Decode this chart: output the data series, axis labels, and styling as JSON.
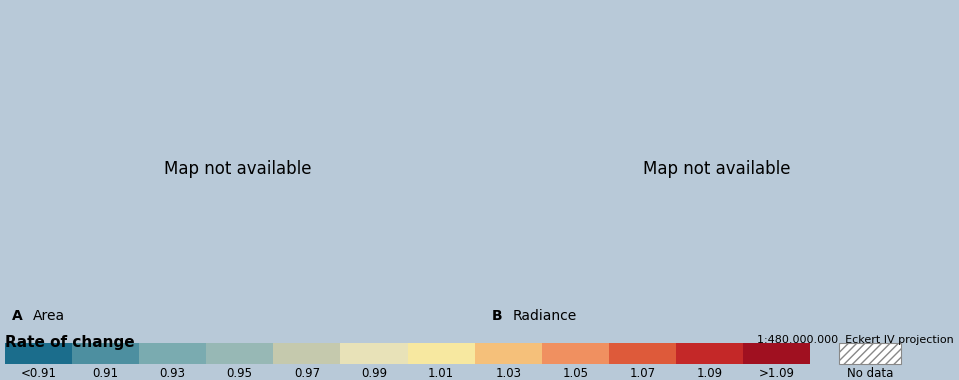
{
  "panel_a_label": "A",
  "panel_a_title": "Area",
  "panel_b_label": "B",
  "panel_b_title": "Radiance",
  "legend_title": "Rate of change",
  "scale_text": "1:480.000.000  Eckert IV projection",
  "no_data_text": "No data",
  "background_color": "#b8c9d8",
  "ocean_color": "#b8c9d8",
  "colorbar_colors": [
    "#1b6d8c",
    "#4d8fa0",
    "#7aabb0",
    "#97b8b5",
    "#c5c9ad",
    "#e8e2b8",
    "#f7e8a0",
    "#f5c07a",
    "#f09060",
    "#de5a3a",
    "#c42828",
    "#a01020"
  ],
  "colorbar_labels": [
    "<0.91",
    "0.91",
    "0.93",
    "0.95",
    "0.97",
    "0.99",
    "1.01",
    "1.03",
    "1.05",
    "1.07",
    "1.09",
    ">1.09"
  ],
  "label_fontsize": 10,
  "tick_fontsize": 8.5,
  "legend_title_fontsize": 11,
  "area_default": "#f5c07a",
  "radiance_default": "#f5c07a",
  "area_countries": {
    "Russia": "#a01020",
    "Canada": "#f5c07a",
    "United States of America": "#f7e8a0",
    "Greenland": "#e8e2b8",
    "Brazil": "#f5c07a",
    "Australia": "#1b6d8c",
    "China": "#f09060",
    "India": "#de5a3a",
    "Nigeria": "#c42828",
    "Ethiopia": "#c42828",
    "Egypt": "#a01020",
    "Algeria": "#c42828",
    "Libya": "#a01020",
    "Sudan": "#c42828",
    "South Africa": "#f09060",
    "Angola": "#c42828",
    "Dem. Rep. Congo": "#f09060",
    "Tanzania": "#f09060",
    "Kenya": "#f09060",
    "Mozambique": "#f5c07a",
    "Germany": "#c42828",
    "France": "#c42828",
    "Spain": "#de5a3a",
    "United Kingdom": "#c42828",
    "Italy": "#c42828",
    "Poland": "#a01020",
    "Saudi Arabia": "#a01020",
    "Iran": "#f09060",
    "Iraq": "#a01020",
    "Turkey": "#c42828",
    "Japan": "#f5c07a",
    "South Korea": "#f09060",
    "Indonesia": "#f5c07a",
    "Kazakhstan": "#e8e2b8",
    "Pakistan": "#de5a3a",
    "Colombia": "#de5a3a",
    "Venezuela": "#de5a3a",
    "Peru": "#f5c07a",
    "Argentina": "#f5c07a",
    "Chile": "#f5c07a",
    "Mexico": "#f09060",
    "Ukraine": "#a01020",
    "Belarus": "#a01020",
    "Romania": "#a01020",
    "Hungary": "#a01020",
    "Czech Rep.": "#a01020",
    "Slovakia": "#a01020",
    "Bulgaria": "#a01020",
    "Serbia": "#a01020",
    "Croatia": "#c42828",
    "Bosnia and Herz.": "#c42828",
    "Sweden": "#a01020",
    "Norway": "#a01020",
    "Finland": "#a01020",
    "Denmark": "#a01020",
    "Austria": "#a01020",
    "Switzerland": "#c42828",
    "Netherlands": "#a01020",
    "Belgium": "#a01020",
    "Portugal": "#c42828",
    "Greece": "#c42828",
    "Morocco": "#c42828",
    "Tunisia": "#a01020",
    "Somalia": "#c42828",
    "Zimbabwe": "#f09060",
    "Zambia": "#f09060",
    "Mali": "#a01020",
    "Niger": "#a01020",
    "Chad": "#c42828",
    "Cameroon": "#c42828",
    "Senegal": "#c42828",
    "Guinea": "#c42828",
    "Ghana": "#c42828",
    "Ivory Coast": "#c42828",
    "Burkina Faso": "#a01020",
    "Madagascar": "#7aabb0",
    "Mongolia": "#e8e2b8",
    "Myanmar": "#f09060",
    "Thailand": "#f09060",
    "Vietnam": "#c42828",
    "Malaysia": "#f5c07a",
    "Philippines": "#f5c07a",
    "Afghanistan": "#97b8b5",
    "Uzbekistan": "#f09060",
    "Syria": "#a01020",
    "Yemen": "#a01020",
    "Oman": "#c42828",
    "Jordan": "#a01020",
    "Israel": "#a01020",
    "Lebanon": "#a01020",
    "Kuwait": "#a01020",
    "Qatar": "#a01020",
    "United Arab Emirates": "#c42828",
    "Bolivia": "#f5c07a",
    "Paraguay": "#f5c07a",
    "Uruguay": "#f5c07a",
    "Ecuador": "#de5a3a",
    "Cuba": "#c42828",
    "Guatemala": "#c42828",
    "Honduras": "#c42828",
    "Nicaragua": "#c42828",
    "Costa Rica": "#c42828",
    "Panama": "#c42828",
    "New Zealand": "#f5c07a",
    "Papua New Guinea": "#f5c07a",
    "Laos": "#f09060",
    "Cambodia": "#f09060",
    "Bangladesh": "#de5a3a",
    "Sri Lanka": "#de5a3a",
    "Nepal": "#de5a3a",
    "North Korea": "#c42828",
    "Taiwan": "#f09060",
    "Eritrea": "#c42828",
    "South Sudan": "#c42828",
    "Rwanda": "#c42828",
    "Burundi": "#c42828",
    "Uganda": "#c42828",
    "Congo": "#c42828",
    "Gabon": "#f09060",
    "Central African Rep.": "#c42828",
    "Benin": "#c42828",
    "Togo": "#c42828",
    "Liberia": "#c42828",
    "Sierra Leone": "#c42828",
    "Gambia": "#c42828",
    "Guinea-Bissau": "#c42828",
    "Mauritania": "#c42828",
    "Western Sahara": "#c42828",
    "Namibia": "#f09060",
    "Botswana": "#f09060",
    "Lesotho": "#f09060",
    "Swaziland": "#f09060",
    "Malawi": "#f09060",
    "Djibouti": "#c42828",
    "Albania": "#c42828",
    "Macedonia": "#c42828",
    "Kosovo": "#c42828",
    "Montenegro": "#c42828",
    "Moldova": "#a01020",
    "Lithuania": "#a01020",
    "Latvia": "#a01020",
    "Estonia": "#a01020",
    "Ireland": "#c42828",
    "Iceland": "#c42828",
    "Luxembourg": "#c42828",
    "Slovenia": "#c42828",
    "Azerbaijan": "#f09060",
    "Georgia": "#f09060",
    "Armenia": "#f09060",
    "Tajikistan": "#f09060",
    "Turkmenistan": "#f09060",
    "Kyrgyzstan": "#f09060"
  },
  "radiance_countries": {
    "Russia": "#de5a3a",
    "Canada": "#e8e2b8",
    "United States of America": "#e8e2b8",
    "Greenland": "#e8e2b8",
    "Brazil": "#f5c07a",
    "Australia": "#f5c07a",
    "China": "#f09060",
    "India": "#f09060",
    "Nigeria": "#c42828",
    "Ethiopia": "#f09060",
    "Egypt": "#f09060",
    "Algeria": "#f5c07a",
    "Libya": "#f5c07a",
    "Sudan": "#f09060",
    "South Africa": "#f5c07a",
    "Angola": "#f09060",
    "Dem. Rep. Congo": "#f5c07a",
    "Tanzania": "#f09060",
    "Kenya": "#f09060",
    "Mozambique": "#f5c07a",
    "Germany": "#c42828",
    "France": "#de5a3a",
    "Spain": "#de5a3a",
    "United Kingdom": "#c42828",
    "Italy": "#de5a3a",
    "Poland": "#c42828",
    "Saudi Arabia": "#f5c07a",
    "Iran": "#f09060",
    "Iraq": "#f09060",
    "Turkey": "#de5a3a",
    "Japan": "#f5c07a",
    "South Korea": "#f09060",
    "Indonesia": "#f5c07a",
    "Kazakhstan": "#f09060",
    "Pakistan": "#de5a3a",
    "Colombia": "#de5a3a",
    "Venezuela": "#de5a3a",
    "Peru": "#c42828",
    "Argentina": "#f5c07a",
    "Chile": "#de5a3a",
    "Mexico": "#f09060",
    "Ukraine": "#de5a3a",
    "Belarus": "#de5a3a",
    "Romania": "#de5a3a",
    "Hungary": "#de5a3a",
    "Czech Rep.": "#de5a3a",
    "Slovakia": "#de5a3a",
    "Bulgaria": "#de5a3a",
    "Serbia": "#de5a3a",
    "Sweden": "#de5a3a",
    "Norway": "#de5a3a",
    "Finland": "#de5a3a",
    "Denmark": "#de5a3a",
    "Austria": "#de5a3a",
    "Switzerland": "#de5a3a",
    "Netherlands": "#de5a3a",
    "Belgium": "#de5a3a",
    "Portugal": "#de5a3a",
    "Greece": "#de5a3a",
    "Morocco": "#f09060",
    "Tunisia": "#f09060",
    "Somalia": "#f09060",
    "Zimbabwe": "#f09060",
    "Zambia": "#f09060",
    "Mali": "#f09060",
    "Niger": "#f09060",
    "Chad": "#97b8b5",
    "Cameroon": "#f09060",
    "Senegal": "#f09060",
    "Ghana": "#c42828",
    "Madagascar": "#97b8b5",
    "Mongolia": "#f09060",
    "Myanmar": "#f09060",
    "Thailand": "#f09060",
    "Vietnam": "#c42828",
    "Malaysia": "#f5c07a",
    "Philippines": "#f5c07a",
    "Afghanistan": "#97b8b5",
    "Uzbekistan": "#f09060",
    "Syria": "#f09060",
    "Yemen": "#f09060",
    "Bolivia": "#f5c07a",
    "Ecuador": "#c42828",
    "Cuba": "#f09060",
    "Guatemala": "#de5a3a",
    "New Zealand": "#f5c07a",
    "Bangladesh": "#de5a3a",
    "North Korea": "#97b8b5",
    "Congo": "#97b8b5",
    "Namibia": "#f5c07a",
    "Botswana": "#f5c07a",
    "Moldova": "#de5a3a",
    "Lithuania": "#de5a3a",
    "Latvia": "#de5a3a",
    "Estonia": "#de5a3a",
    "Azerbaijan": "#f09060",
    "Georgia": "#f09060",
    "Armenia": "#f09060",
    "Tajikistan": "#f09060",
    "Turkmenistan": "#f09060",
    "Kyrgyzstan": "#f09060",
    "Papua New Guinea": "#1b6d8c"
  }
}
